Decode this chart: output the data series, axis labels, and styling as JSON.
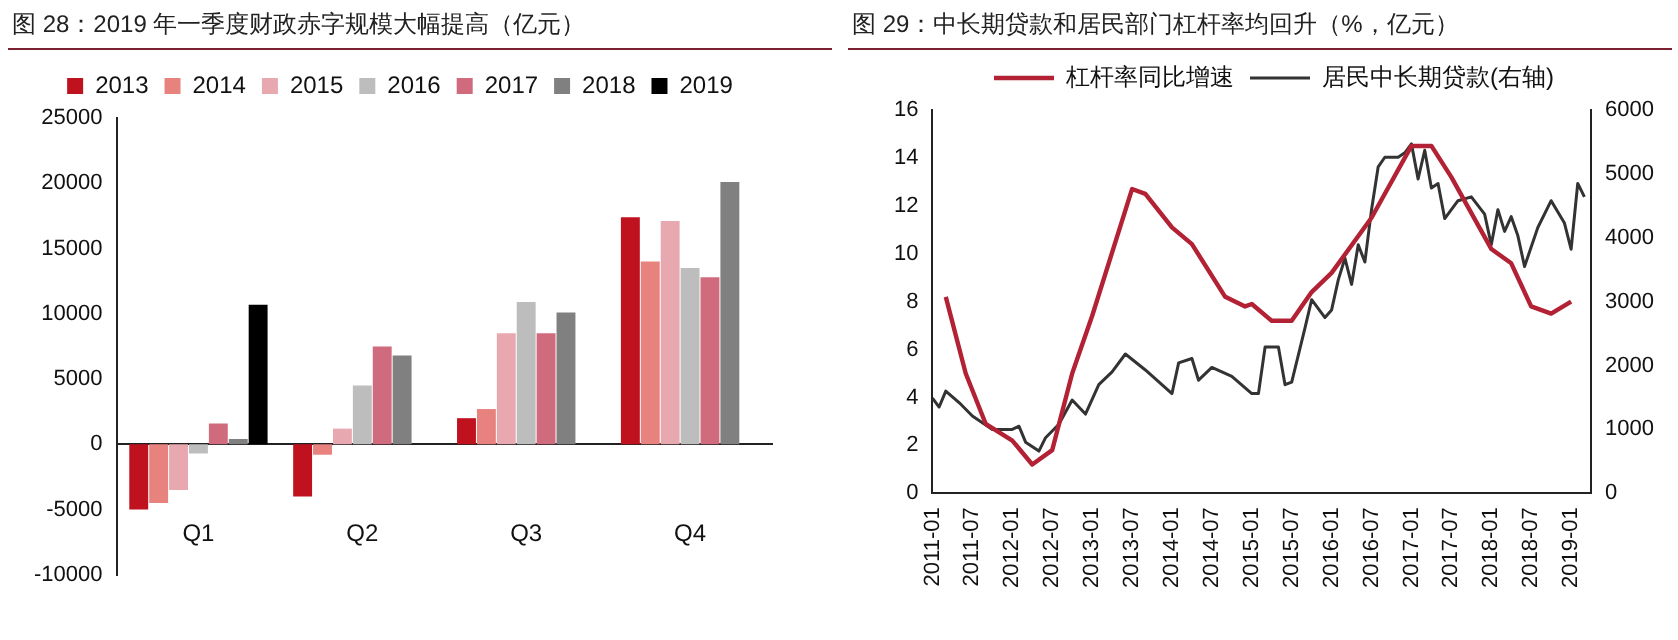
{
  "chart_data": [
    {
      "type": "bar",
      "title": "图 28：2019 年一季度财政赤字规模大幅提高（亿元）",
      "categories": [
        "Q1",
        "Q2",
        "Q3",
        "Q4"
      ],
      "series": [
        {
          "name": "2013",
          "color": "#c0111f",
          "values": [
            -5000,
            -4000,
            2000,
            17400
          ]
        },
        {
          "name": "2014",
          "color": "#e8827f",
          "values": [
            -4500,
            -800,
            2700,
            14000
          ]
        },
        {
          "name": "2015",
          "color": "#e8a8b0",
          "values": [
            -3500,
            1200,
            8500,
            17100
          ]
        },
        {
          "name": "2016",
          "color": "#bdbdbd",
          "values": [
            -700,
            4500,
            10900,
            13500
          ]
        },
        {
          "name": "2017",
          "color": "#d06b7e",
          "values": [
            1600,
            7500,
            8500,
            12800
          ]
        },
        {
          "name": "2018",
          "color": "#808080",
          "values": [
            400,
            6800,
            10100,
            20100
          ]
        },
        {
          "name": "2019",
          "color": "#000000",
          "values": [
            10700,
            null,
            null,
            null
          ]
        }
      ],
      "ylim": [
        -10000,
        25000
      ],
      "yticks": [
        -10000,
        -5000,
        0,
        5000,
        10000,
        15000,
        20000,
        25000
      ],
      "legend": "top"
    },
    {
      "type": "line",
      "title": "图 29：中长期贷款和居民部门杠杆率均回升（%，亿元）",
      "marker": "none",
      "legend": "top",
      "xlim": [
        "2011-01",
        "2019-04"
      ],
      "xticks": [
        "2011-01",
        "2011-07",
        "2012-01",
        "2012-07",
        "2013-01",
        "2013-07",
        "2014-01",
        "2014-07",
        "2015-01",
        "2015-07",
        "2016-01",
        "2016-07",
        "2017-01",
        "2017-07",
        "2018-01",
        "2018-07",
        "2019-01"
      ],
      "ylim": [
        0,
        16
      ],
      "yticks": [
        0,
        2,
        4,
        6,
        8,
        10,
        12,
        14,
        16
      ],
      "y2lim": [
        0,
        6000
      ],
      "y2ticks": [
        0,
        1000,
        2000,
        3000,
        4000,
        5000,
        6000
      ],
      "series": [
        {
          "name": "杠杆率同比增速",
          "color": "#b22234",
          "x": [
            "2011-03",
            "2011-06",
            "2011-09",
            "2012-01",
            "2012-04",
            "2012-07",
            "2012-10",
            "2013-01",
            "2013-07",
            "2013-09",
            "2014-01",
            "2014-04",
            "2014-09",
            "2014-12",
            "2015-01",
            "2015-04",
            "2015-07",
            "2015-10",
            "2016-01",
            "2016-07",
            "2017-01",
            "2017-04",
            "2017-07",
            "2018-01",
            "2018-04",
            "2018-07",
            "2018-10",
            "2019-01"
          ],
          "values": [
            8.2,
            5.0,
            2.9,
            2.2,
            1.2,
            1.8,
            5.0,
            7.4,
            12.7,
            12.5,
            11.1,
            10.4,
            8.2,
            7.8,
            7.9,
            7.2,
            7.2,
            8.4,
            9.2,
            11.5,
            14.5,
            14.5,
            13.2,
            10.2,
            9.6,
            7.8,
            7.5,
            8.0
          ]
        },
        {
          "name": "居民中长期贷款(右轴)",
          "color": "#333333",
          "axis": "y2",
          "x": [
            "2011-01",
            "2011-02",
            "2011-03",
            "2011-05",
            "2011-07",
            "2011-10",
            "2012-01",
            "2012-02",
            "2012-03",
            "2012-05",
            "2012-06",
            "2012-08",
            "2012-10",
            "2012-12",
            "2013-02",
            "2013-04",
            "2013-06",
            "2013-09",
            "2014-01",
            "2014-02",
            "2014-04",
            "2014-05",
            "2014-07",
            "2014-10",
            "2015-01",
            "2015-02",
            "2015-03",
            "2015-05",
            "2015-06",
            "2015-07",
            "2015-09",
            "2015-10",
            "2015-12",
            "2016-01",
            "2016-02",
            "2016-03",
            "2016-04",
            "2016-05",
            "2016-06",
            "2016-07",
            "2016-08",
            "2016-09",
            "2016-11",
            "2016-12",
            "2017-01",
            "2017-02",
            "2017-03",
            "2017-04",
            "2017-05",
            "2017-06",
            "2017-08",
            "2017-10",
            "2017-12",
            "2018-01",
            "2018-02",
            "2018-03",
            "2018-04",
            "2018-05",
            "2018-06",
            "2018-08",
            "2018-10",
            "2018-12",
            "2019-01",
            "2019-02",
            "2019-03"
          ],
          "values": [
            1490,
            1350,
            1600,
            1420,
            1210,
            1000,
            1000,
            1050,
            800,
            660,
            870,
            1080,
            1460,
            1240,
            1700,
            1900,
            2180,
            1930,
            1560,
            2040,
            2110,
            1770,
            1970,
            1830,
            1560,
            1560,
            2290,
            2290,
            1700,
            1740,
            2590,
            3030,
            2750,
            2870,
            3340,
            3680,
            3270,
            3890,
            3620,
            4440,
            5110,
            5260,
            5260,
            5330,
            5470,
            4920,
            5370,
            4780,
            4850,
            4300,
            4580,
            4640,
            4370,
            3890,
            4440,
            4100,
            4330,
            4030,
            3550,
            4160,
            4580,
            4230,
            3820,
            4850,
            4640
          ]
        }
      ]
    }
  ]
}
